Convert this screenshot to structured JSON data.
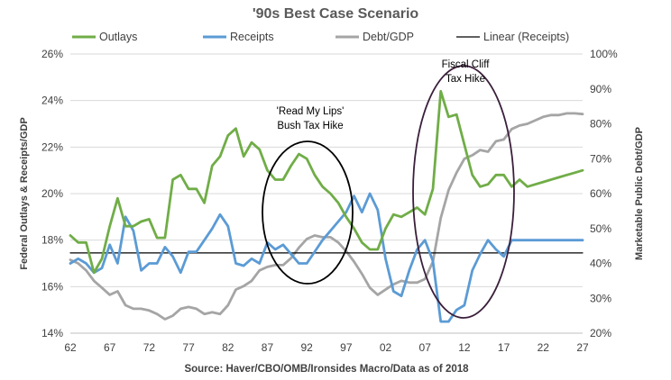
{
  "chart_data": {
    "type": "line",
    "title": "'90s Best Case Scenario",
    "source": "Source: Haver/CBO/OMB/Ironsides Macro/Data as of 2018",
    "y_left_label": "Federal Outlays & Receipts/GDP",
    "y_right_label": "Marketable Public Debt/GDP",
    "x_ticks": [
      "62",
      "67",
      "72",
      "77",
      "82",
      "87",
      "92",
      "97",
      "02",
      "07",
      "12",
      "17",
      "22",
      "27"
    ],
    "x_tick_years": [
      1962,
      1967,
      1972,
      1977,
      1982,
      1987,
      1992,
      1997,
      2002,
      2007,
      2012,
      2017,
      2022,
      2027
    ],
    "xlim": [
      1962,
      2027
    ],
    "y_left_ticks": [
      "14%",
      "16%",
      "18%",
      "20%",
      "22%",
      "24%",
      "26%"
    ],
    "y_left_lim": [
      14,
      26
    ],
    "y_right_ticks": [
      "20%",
      "30%",
      "40%",
      "50%",
      "60%",
      "70%",
      "80%",
      "90%",
      "100%"
    ],
    "y_right_lim": [
      20,
      100
    ],
    "legend": [
      "Outlays",
      "Receipts",
      "Debt/GDP",
      "Linear (Receipts)"
    ],
    "colors": {
      "outlays": "#70AD47",
      "receipts": "#5B9BD5",
      "debt": "#A5A5A5",
      "trend": "#000000",
      "cliff_circle": "#3B1F3B",
      "lips_circle": "#000000",
      "grid": "#D9D9D9"
    },
    "series": [
      {
        "name": "Outlays",
        "axis": "left",
        "x": [
          1962,
          1963,
          1964,
          1965,
          1966,
          1967,
          1968,
          1969,
          1970,
          1971,
          1972,
          1973,
          1974,
          1975,
          1976,
          1977,
          1978,
          1979,
          1980,
          1981,
          1982,
          1983,
          1984,
          1985,
          1986,
          1987,
          1988,
          1989,
          1990,
          1991,
          1992,
          1993,
          1994,
          1995,
          1996,
          1997,
          1998,
          1999,
          2000,
          2001,
          2002,
          2003,
          2004,
          2005,
          2006,
          2007,
          2008,
          2009,
          2010,
          2011,
          2012,
          2013,
          2014,
          2015,
          2016,
          2017,
          2018,
          2019,
          2020,
          2021,
          2022,
          2023,
          2024,
          2025,
          2026,
          2027
        ],
        "values": [
          18.2,
          17.9,
          17.9,
          16.6,
          17.2,
          18.6,
          19.8,
          18.6,
          18.6,
          18.8,
          18.9,
          18.1,
          18.1,
          20.6,
          20.8,
          20.2,
          20.2,
          19.6,
          21.2,
          21.6,
          22.5,
          22.8,
          21.6,
          22.2,
          21.9,
          21.0,
          20.6,
          20.6,
          21.2,
          21.7,
          21.5,
          20.8,
          20.3,
          20.0,
          19.6,
          19.0,
          18.5,
          17.9,
          17.6,
          17.6,
          18.5,
          19.1,
          19.0,
          19.2,
          19.4,
          19.1,
          20.2,
          24.4,
          23.3,
          23.4,
          22.1,
          20.8,
          20.3,
          20.4,
          20.8,
          20.8,
          20.3,
          20.6,
          20.3,
          20.4,
          20.5,
          20.6,
          20.7,
          20.8,
          20.9,
          21.0
        ]
      },
      {
        "name": "Receipts",
        "axis": "left",
        "x": [
          1962,
          1963,
          1964,
          1965,
          1966,
          1967,
          1968,
          1969,
          1970,
          1971,
          1972,
          1973,
          1974,
          1975,
          1976,
          1977,
          1978,
          1979,
          1980,
          1981,
          1982,
          1983,
          1984,
          1985,
          1986,
          1987,
          1988,
          1989,
          1990,
          1991,
          1992,
          1993,
          1994,
          1995,
          1996,
          1997,
          1998,
          1999,
          2000,
          2001,
          2002,
          2003,
          2004,
          2005,
          2006,
          2007,
          2008,
          2009,
          2010,
          2011,
          2012,
          2013,
          2014,
          2015,
          2016,
          2017,
          2018,
          2019,
          2020,
          2021,
          2022,
          2023,
          2024,
          2025,
          2026,
          2027
        ],
        "values": [
          17.0,
          17.2,
          17.0,
          16.6,
          16.8,
          17.8,
          17.0,
          19.0,
          18.4,
          16.7,
          17.0,
          17.0,
          17.7,
          17.3,
          16.6,
          17.5,
          17.5,
          18.0,
          18.5,
          19.1,
          18.6,
          17.0,
          16.9,
          17.2,
          17.0,
          17.9,
          17.6,
          17.8,
          17.4,
          17.0,
          17.0,
          17.5,
          18.0,
          18.4,
          18.8,
          19.2,
          19.9,
          19.2,
          20.0,
          19.3,
          17.2,
          15.8,
          15.6,
          16.7,
          17.6,
          18.0,
          17.1,
          14.5,
          14.5,
          15.0,
          15.2,
          16.7,
          17.4,
          18.0,
          17.6,
          17.3,
          18.0,
          18.0,
          18.0,
          18.0,
          18.0,
          18.0,
          18.0,
          18.0,
          18.0,
          18.0
        ]
      },
      {
        "name": "Debt/GDP",
        "axis": "right",
        "x": [
          1962,
          1963,
          1964,
          1965,
          1966,
          1967,
          1968,
          1969,
          1970,
          1971,
          1972,
          1973,
          1974,
          1975,
          1976,
          1977,
          1978,
          1979,
          1980,
          1981,
          1982,
          1983,
          1984,
          1985,
          1986,
          1987,
          1988,
          1989,
          1990,
          1991,
          1992,
          1993,
          1994,
          1995,
          1996,
          1997,
          1998,
          1999,
          2000,
          2001,
          2002,
          2003,
          2004,
          2005,
          2006,
          2007,
          2008,
          2009,
          2010,
          2011,
          2012,
          2013,
          2014,
          2015,
          2016,
          2017,
          2018,
          2019,
          2020,
          2021,
          2022,
          2023,
          2024,
          2025,
          2026,
          2027
        ],
        "values": [
          41,
          40,
          38,
          35,
          33,
          31,
          32,
          28,
          27,
          27,
          26.5,
          25.5,
          24,
          25,
          27,
          27.5,
          27,
          25.5,
          26,
          25.5,
          28,
          32.5,
          33.5,
          35,
          38,
          39,
          39.5,
          39.5,
          41.5,
          44.5,
          47,
          48,
          47.5,
          47.5,
          46,
          43.5,
          40.5,
          37,
          33,
          31,
          32.5,
          34,
          35,
          34.5,
          34.5,
          35.5,
          40.5,
          53,
          61,
          66,
          70,
          71,
          72.5,
          72,
          75,
          75.5,
          78.5,
          79.5,
          80,
          81,
          82,
          82.5,
          82.5,
          83,
          83,
          82.8
        ]
      },
      {
        "name": "Linear (Receipts)",
        "axis": "left",
        "x": [
          1962,
          2027
        ],
        "values": [
          17.45,
          17.45
        ]
      }
    ],
    "annotations": [
      {
        "lines": [
          "'Read My Lips'",
          "Bush Tax Hike"
        ]
      },
      {
        "lines": [
          "Fiscal Cliff",
          "Tax Hike"
        ]
      }
    ]
  }
}
